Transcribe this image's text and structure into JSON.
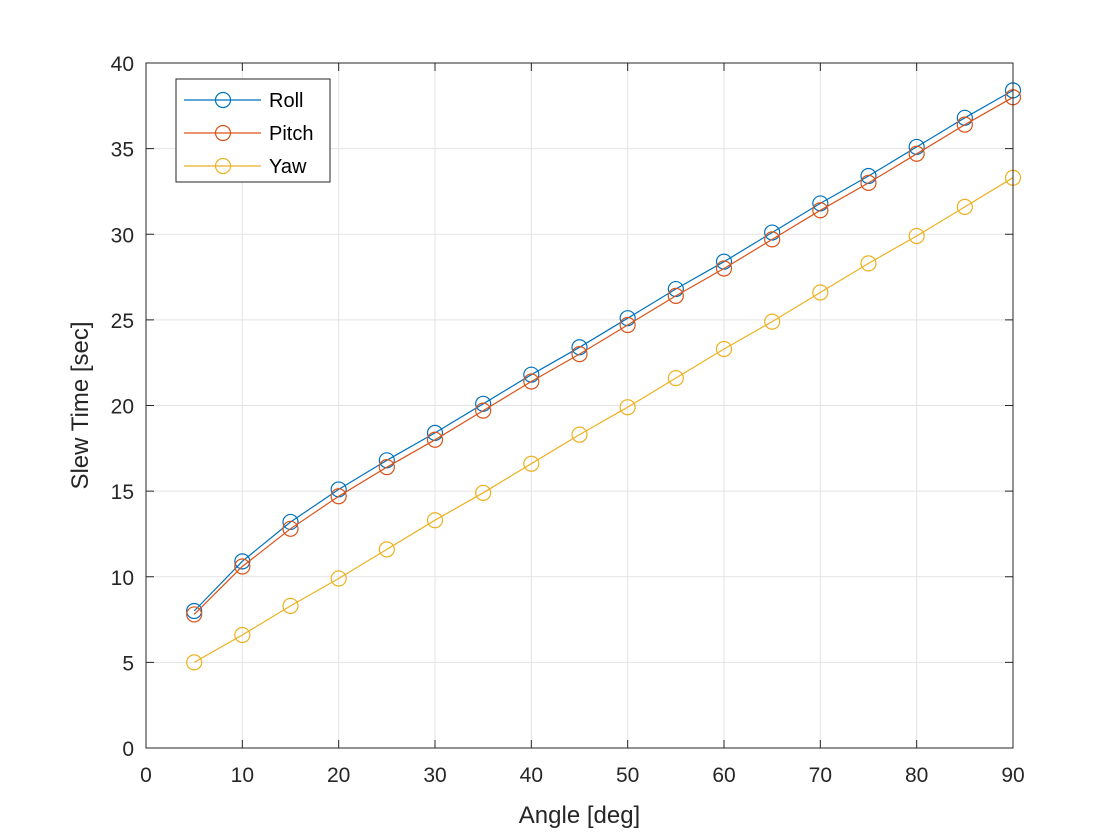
{
  "chart_data": {
    "type": "line",
    "title": "",
    "xlabel": "Angle [deg]",
    "ylabel": "Slew Time [sec]",
    "xlim": [
      0,
      90
    ],
    "ylim": [
      0,
      40
    ],
    "xticks": [
      0,
      10,
      20,
      30,
      40,
      50,
      60,
      70,
      80,
      90
    ],
    "yticks": [
      0,
      5,
      10,
      15,
      20,
      25,
      30,
      35,
      40
    ],
    "grid": true,
    "legend_position": "top-left",
    "x": [
      5,
      10,
      15,
      20,
      25,
      30,
      35,
      40,
      45,
      50,
      55,
      60,
      65,
      70,
      75,
      80,
      85,
      90
    ],
    "series": [
      {
        "name": "Roll",
        "color": "#0072BD",
        "marker": "circle",
        "values": [
          8.0,
          10.9,
          13.2,
          15.1,
          16.8,
          18.4,
          20.1,
          21.8,
          23.4,
          25.1,
          26.8,
          28.4,
          30.1,
          31.8,
          33.4,
          35.1,
          36.8,
          38.4
        ]
      },
      {
        "name": "Pitch",
        "color": "#D95319",
        "marker": "circle",
        "values": [
          7.8,
          10.6,
          12.8,
          14.7,
          16.4,
          18.0,
          19.7,
          21.4,
          23.0,
          24.7,
          26.4,
          28.0,
          29.7,
          31.4,
          33.0,
          34.7,
          36.4,
          38.0
        ]
      },
      {
        "name": "Yaw",
        "color": "#EDB120",
        "marker": "circle",
        "values": [
          5.0,
          6.6,
          8.3,
          9.9,
          11.6,
          13.3,
          14.9,
          16.6,
          18.3,
          19.9,
          21.6,
          23.3,
          24.9,
          26.6,
          28.3,
          29.9,
          31.6,
          33.3
        ]
      }
    ]
  }
}
